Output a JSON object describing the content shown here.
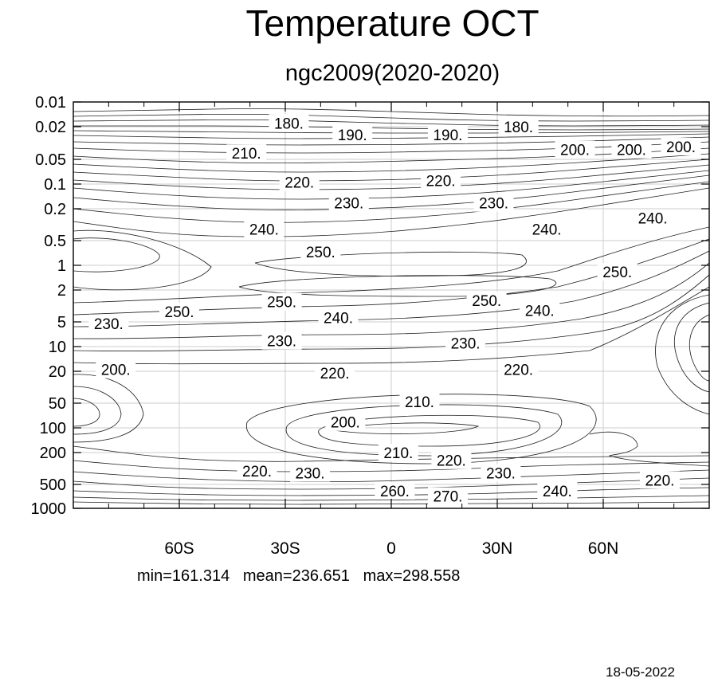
{
  "title": "Temperature OCT",
  "subtitle": "ngc2009(2020-2020)",
  "stats": {
    "min": "min=161.314",
    "mean": "mean=236.651",
    "max": "max=298.558"
  },
  "date": "18-05-2022",
  "chart_data": {
    "type": "contour",
    "xlabel": "",
    "ylabel": "",
    "x_ticks": [
      {
        "label": "60S",
        "lat": -60
      },
      {
        "label": "30S",
        "lat": -30
      },
      {
        "label": "0",
        "lat": 0
      },
      {
        "label": "30N",
        "lat": 30
      },
      {
        "label": "60N",
        "lat": 60
      }
    ],
    "y_ticks": [
      {
        "label": "0.01",
        "p": 0.01
      },
      {
        "label": "0.02",
        "p": 0.02
      },
      {
        "label": "0.05",
        "p": 0.05
      },
      {
        "label": "0.1",
        "p": 0.1
      },
      {
        "label": "0.2",
        "p": 0.2
      },
      {
        "label": "0.5",
        "p": 0.5
      },
      {
        "label": "1",
        "p": 1
      },
      {
        "label": "2",
        "p": 2
      },
      {
        "label": "5",
        "p": 5
      },
      {
        "label": "10",
        "p": 10
      },
      {
        "label": "20",
        "p": 20
      },
      {
        "label": "50",
        "p": 50
      },
      {
        "label": "100",
        "p": 100
      },
      {
        "label": "200",
        "p": 200
      },
      {
        "label": "500",
        "p": 500
      },
      {
        "label": "1000",
        "p": 1000
      }
    ],
    "xlim": [
      -90,
      90
    ],
    "ylim": [
      1000,
      0.01
    ],
    "y_scale": "log",
    "grid": true,
    "contour_labels": [
      {
        "text": "180.",
        "lat": -29,
        "p": 0.018
      },
      {
        "text": "190.",
        "lat": -11,
        "p": 0.025
      },
      {
        "text": "190.",
        "lat": 16,
        "p": 0.025
      },
      {
        "text": "180.",
        "lat": 36,
        "p": 0.02
      },
      {
        "text": "200.",
        "lat": 52,
        "p": 0.038
      },
      {
        "text": "200.",
        "lat": 68,
        "p": 0.038
      },
      {
        "text": "200.",
        "lat": 82,
        "p": 0.035
      },
      {
        "text": "210.",
        "lat": -41,
        "p": 0.042
      },
      {
        "text": "220.",
        "lat": -26,
        "p": 0.095
      },
      {
        "text": "220.",
        "lat": 14,
        "p": 0.09
      },
      {
        "text": "230.",
        "lat": -12,
        "p": 0.17
      },
      {
        "text": "230.",
        "lat": 29,
        "p": 0.17
      },
      {
        "text": "240.",
        "lat": -36,
        "p": 0.36
      },
      {
        "text": "240.",
        "lat": 44,
        "p": 0.36
      },
      {
        "text": "240.",
        "lat": 74,
        "p": 0.26
      },
      {
        "text": "250.",
        "lat": -20,
        "p": 0.68
      },
      {
        "text": "250.",
        "lat": 64,
        "p": 1.2
      },
      {
        "text": "250.",
        "lat": -31,
        "p": 2.8
      },
      {
        "text": "250.",
        "lat": 27,
        "p": 2.7
      },
      {
        "text": "250.",
        "lat": -60,
        "p": 3.7
      },
      {
        "text": "240.",
        "lat": -15,
        "p": 4.4
      },
      {
        "text": "240.",
        "lat": 42,
        "p": 3.6
      },
      {
        "text": "230.",
        "lat": -80,
        "p": 5.2
      },
      {
        "text": "230.",
        "lat": -31,
        "p": 8.5
      },
      {
        "text": "230.",
        "lat": 21,
        "p": 9.0
      },
      {
        "text": "200.",
        "lat": -78,
        "p": 19
      },
      {
        "text": "220.",
        "lat": -16,
        "p": 21
      },
      {
        "text": "220.",
        "lat": 36,
        "p": 19
      },
      {
        "text": "210.",
        "lat": 8,
        "p": 48
      },
      {
        "text": "200.",
        "lat": -13,
        "p": 85
      },
      {
        "text": "210.",
        "lat": 2,
        "p": 200
      },
      {
        "text": "220.",
        "lat": -38,
        "p": 340
      },
      {
        "text": "230.",
        "lat": -23,
        "p": 360
      },
      {
        "text": "220.",
        "lat": 17,
        "p": 250
      },
      {
        "text": "230.",
        "lat": 31,
        "p": 360
      },
      {
        "text": "240.",
        "lat": 47,
        "p": 600
      },
      {
        "text": "220.",
        "lat": 76,
        "p": 440
      },
      {
        "text": "260.",
        "lat": 1,
        "p": 600
      },
      {
        "text": "270.",
        "lat": 16,
        "p": 700
      }
    ]
  }
}
